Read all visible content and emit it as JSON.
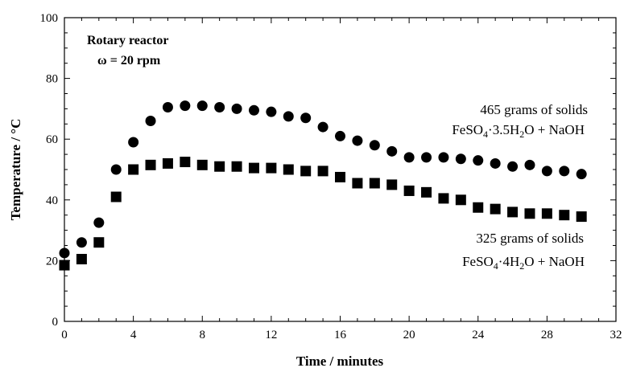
{
  "chart_data": {
    "type": "scatter",
    "xlabel": "Time / minutes",
    "ylabel": "Temperature / °C",
    "xlim": [
      0,
      32
    ],
    "ylim": [
      0,
      100
    ],
    "xticks": [
      0,
      4,
      8,
      12,
      16,
      20,
      24,
      28,
      32
    ],
    "yticks": [
      0,
      20,
      40,
      60,
      80,
      100
    ],
    "grid": false,
    "annotations": {
      "reactor_line1": "Rotary reactor",
      "reactor_line2": "ω = 20 rpm",
      "s1_line1": "465 grams  of solids",
      "s1_line2": "FeSO4·3.5H2O + NaOH",
      "s2_line1": "325 grams  of solids",
      "s2_line2": "FeSO4·4H2O + NaOH"
    },
    "series": [
      {
        "marker": "circle",
        "x": [
          0,
          1,
          2,
          3,
          4,
          5,
          6,
          7,
          8,
          9,
          10,
          11,
          12,
          13,
          14,
          15,
          16,
          17,
          18,
          19,
          20,
          21,
          22,
          23,
          24,
          25,
          26,
          27,
          28,
          29,
          30
        ],
        "y": [
          22.5,
          26,
          32.5,
          50,
          59,
          66,
          70.5,
          71,
          71,
          70.5,
          70,
          69.5,
          69,
          67.5,
          67,
          64,
          61,
          59.5,
          58,
          56,
          54,
          54,
          54,
          53.5,
          53,
          52,
          51,
          51.5,
          49.5,
          49.5,
          48.5
        ]
      },
      {
        "marker": "square",
        "x": [
          0,
          1,
          2,
          3,
          4,
          5,
          6,
          7,
          8,
          9,
          10,
          11,
          12,
          13,
          14,
          15,
          16,
          17,
          18,
          19,
          20,
          21,
          22,
          23,
          24,
          25,
          26,
          27,
          28,
          29,
          30
        ],
        "y": [
          18.5,
          20.5,
          26,
          41,
          50,
          51.5,
          52,
          52.5,
          51.5,
          51,
          51,
          50.5,
          50.5,
          50,
          49.5,
          49.5,
          47.5,
          45.5,
          45.5,
          45,
          43,
          42.5,
          40.5,
          40,
          37.5,
          37,
          36,
          35.5,
          35.5,
          35,
          34.5
        ]
      }
    ],
    "colors": {
      "marker": "#000000",
      "axis": "#000000"
    }
  }
}
